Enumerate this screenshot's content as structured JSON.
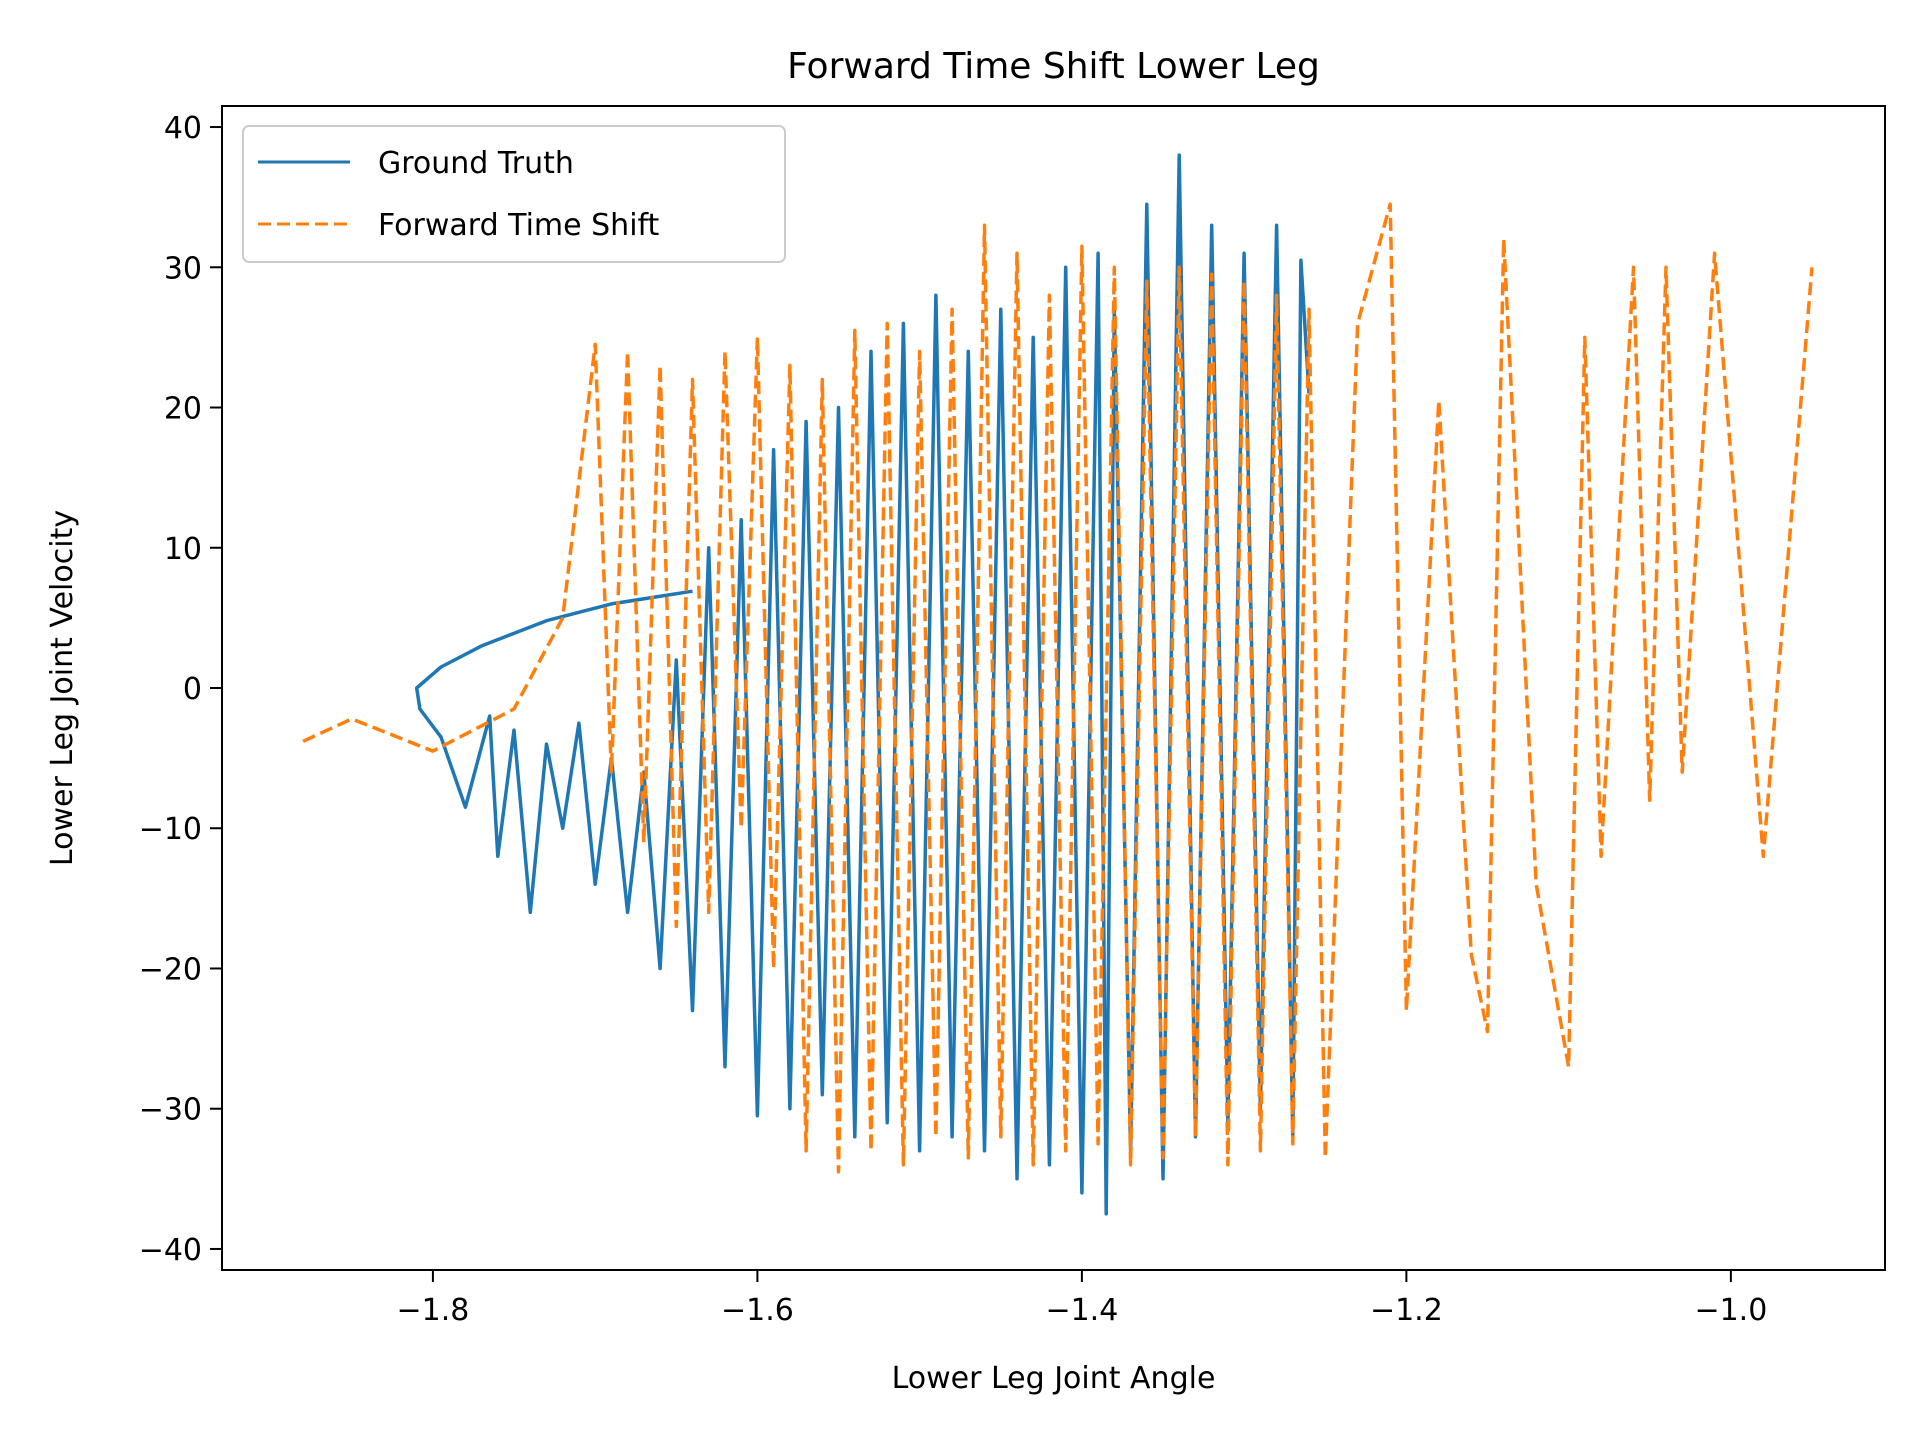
{
  "chart_data": {
    "type": "line",
    "title": "Forward Time Shift Lower Leg",
    "xlabel": "Lower Leg Joint Angle",
    "ylabel": "Lower Leg Joint Velocity",
    "xlim": [
      -1.93,
      -0.905
    ],
    "ylim": [
      -41.5,
      41.5
    ],
    "xticks": [
      -1.8,
      -1.6,
      -1.4,
      -1.2,
      -1.0
    ],
    "xtick_labels": [
      "−1.8",
      "−1.6",
      "−1.4",
      "−1.2",
      "−1.0"
    ],
    "yticks": [
      -40,
      -30,
      -20,
      -10,
      0,
      10,
      20,
      30,
      40
    ],
    "ytick_labels": [
      "−40",
      "−30",
      "−20",
      "−10",
      "0",
      "10",
      "20",
      "30",
      "40"
    ],
    "grid": false,
    "legend_position": "upper left",
    "series": [
      {
        "name": "Ground Truth",
        "color": "#1f77b4",
        "style": "solid",
        "x": [
          -1.64,
          -1.69,
          -1.73,
          -1.77,
          -1.795,
          -1.81,
          -1.808,
          -1.795,
          -1.78,
          -1.765,
          -1.76,
          -1.75,
          -1.74,
          -1.73,
          -1.72,
          -1.71,
          -1.7,
          -1.69,
          -1.68,
          -1.67,
          -1.66,
          -1.65,
          -1.64,
          -1.63,
          -1.62,
          -1.61,
          -1.6,
          -1.59,
          -1.58,
          -1.57,
          -1.56,
          -1.55,
          -1.54,
          -1.53,
          -1.52,
          -1.51,
          -1.5,
          -1.49,
          -1.48,
          -1.47,
          -1.46,
          -1.45,
          -1.44,
          -1.43,
          -1.42,
          -1.41,
          -1.4,
          -1.39,
          -1.385,
          -1.38,
          -1.37,
          -1.36,
          -1.35,
          -1.34,
          -1.33,
          -1.32,
          -1.31,
          -1.3,
          -1.29,
          -1.28,
          -1.27,
          -1.265,
          -1.26
        ],
        "y": [
          6.9,
          6.0,
          4.8,
          3.0,
          1.5,
          0.0,
          -1.5,
          -3.5,
          -8.5,
          -2.0,
          -12.0,
          -3.0,
          -16.0,
          -4.0,
          -10.0,
          -2.5,
          -14.0,
          -5.0,
          -16.0,
          -6.0,
          -20.0,
          2.0,
          -23.0,
          10.0,
          -27.0,
          12.0,
          -30.5,
          17.0,
          -30.0,
          19.0,
          -29.0,
          20.0,
          -32.0,
          24.0,
          -31.0,
          26.0,
          -33.0,
          28.0,
          -32.0,
          24.0,
          -33.0,
          27.0,
          -35.0,
          25.0,
          -34.0,
          30.0,
          -36.0,
          31.0,
          -37.5,
          27.0,
          -33.0,
          34.5,
          -35.0,
          38.0,
          -32.0,
          33.0,
          -31.0,
          31.0,
          -30.0,
          33.0,
          -32.0,
          30.5,
          21.0
        ]
      },
      {
        "name": "Forward Time Shift",
        "color": "#ff7f0e",
        "style": "dashed",
        "x": [
          -1.88,
          -1.85,
          -1.8,
          -1.75,
          -1.72,
          -1.7,
          -1.69,
          -1.68,
          -1.67,
          -1.66,
          -1.65,
          -1.64,
          -1.63,
          -1.62,
          -1.61,
          -1.6,
          -1.59,
          -1.58,
          -1.57,
          -1.56,
          -1.55,
          -1.54,
          -1.53,
          -1.52,
          -1.51,
          -1.5,
          -1.49,
          -1.48,
          -1.47,
          -1.46,
          -1.45,
          -1.44,
          -1.43,
          -1.42,
          -1.41,
          -1.4,
          -1.39,
          -1.38,
          -1.37,
          -1.36,
          -1.35,
          -1.34,
          -1.33,
          -1.32,
          -1.31,
          -1.3,
          -1.29,
          -1.28,
          -1.27,
          -1.26,
          -1.25,
          -1.23,
          -1.21,
          -1.2,
          -1.18,
          -1.16,
          -1.15,
          -1.14,
          -1.12,
          -1.1,
          -1.09,
          -1.08,
          -1.06,
          -1.05,
          -1.04,
          -1.03,
          -1.01,
          -0.98,
          -0.95
        ],
        "y": [
          -3.8,
          -2.2,
          -4.5,
          -1.5,
          5.0,
          24.5,
          -6.0,
          24.0,
          -11.0,
          23.0,
          -17.0,
          22.0,
          -16.0,
          24.0,
          -10.0,
          25.0,
          -20.0,
          23.0,
          -33.0,
          22.0,
          -34.5,
          25.5,
          -33.0,
          26.0,
          -34.0,
          24.0,
          -32.0,
          27.0,
          -33.5,
          33.0,
          -32.0,
          31.0,
          -34.0,
          28.0,
          -33.0,
          31.5,
          -32.5,
          30.0,
          -34.0,
          29.0,
          -33.5,
          30.0,
          -32.0,
          29.5,
          -34.0,
          29.0,
          -33.0,
          28.0,
          -32.5,
          27.0,
          -33.5,
          26.0,
          34.5,
          -23.0,
          20.5,
          -19.0,
          -24.5,
          32.0,
          -14.0,
          -27.0,
          25.0,
          -12.0,
          30.0,
          -8.0,
          30.0,
          -6.0,
          31.0,
          -12.0,
          30.0
        ]
      }
    ],
    "legend": [
      {
        "label": "Ground Truth",
        "color": "#1f77b4",
        "style": "solid"
      },
      {
        "label": "Forward Time Shift",
        "color": "#ff7f0e",
        "style": "dashed"
      }
    ]
  }
}
